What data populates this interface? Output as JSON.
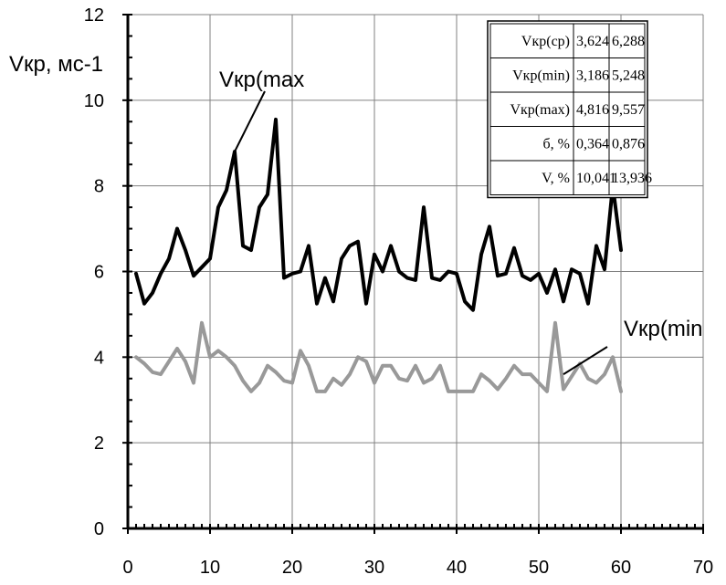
{
  "chart_data": {
    "type": "line",
    "title": "",
    "xlabel": "",
    "ylabel": "Vкр, мс-1",
    "xlim": [
      0,
      70
    ],
    "ylim": [
      0,
      12
    ],
    "xticks": [
      0,
      10,
      20,
      30,
      40,
      50,
      60,
      70
    ],
    "yticks": [
      0,
      2,
      4,
      6,
      8,
      10,
      12
    ],
    "grid": true,
    "legend": "none",
    "series": [
      {
        "name": "Vкр(max",
        "color": "#000000",
        "x": [
          1,
          2,
          3,
          4,
          5,
          6,
          7,
          8,
          9,
          10,
          11,
          12,
          13,
          14,
          15,
          16,
          17,
          18,
          19,
          20,
          21,
          22,
          23,
          24,
          25,
          26,
          27,
          28,
          29,
          30,
          31,
          32,
          33,
          34,
          35,
          36,
          37,
          38,
          39,
          40,
          41,
          42,
          43,
          44,
          45,
          46,
          47,
          48,
          49,
          50,
          51,
          52,
          53,
          54,
          55,
          56,
          57,
          58,
          59,
          60
        ],
        "values": [
          5.95,
          5.25,
          5.5,
          5.95,
          6.3,
          7.0,
          6.5,
          5.9,
          6.1,
          6.3,
          7.5,
          7.9,
          8.8,
          6.6,
          6.5,
          7.5,
          7.8,
          9.55,
          5.85,
          5.95,
          6.0,
          6.6,
          5.25,
          5.85,
          5.3,
          6.3,
          6.6,
          6.7,
          5.25,
          6.4,
          6.0,
          6.6,
          6.0,
          5.85,
          5.8,
          7.5,
          5.85,
          5.8,
          6.0,
          5.95,
          5.3,
          5.1,
          6.4,
          7.05,
          5.9,
          5.95,
          6.55,
          5.9,
          5.8,
          5.95,
          5.5,
          6.05,
          5.3,
          6.05,
          5.95,
          5.25,
          6.6,
          6.05,
          8.0,
          6.5
        ]
      },
      {
        "name": "Vкр(min",
        "color": "#999999",
        "x": [
          1,
          2,
          3,
          4,
          5,
          6,
          7,
          8,
          9,
          10,
          11,
          12,
          13,
          14,
          15,
          16,
          17,
          18,
          19,
          20,
          21,
          22,
          23,
          24,
          25,
          26,
          27,
          28,
          29,
          30,
          31,
          32,
          33,
          34,
          35,
          36,
          37,
          38,
          39,
          40,
          41,
          42,
          43,
          44,
          45,
          46,
          47,
          48,
          49,
          50,
          51,
          52,
          53,
          54,
          55,
          56,
          57,
          58,
          59,
          60
        ],
        "values": [
          4.0,
          3.85,
          3.65,
          3.6,
          3.9,
          4.2,
          3.9,
          3.4,
          4.8,
          4.0,
          4.15,
          4.0,
          3.8,
          3.45,
          3.2,
          3.4,
          3.8,
          3.65,
          3.45,
          3.4,
          4.15,
          3.8,
          3.2,
          3.2,
          3.5,
          3.35,
          3.6,
          4.0,
          3.9,
          3.4,
          3.8,
          3.8,
          3.5,
          3.45,
          3.8,
          3.4,
          3.5,
          3.8,
          3.2,
          3.2,
          3.2,
          3.2,
          3.6,
          3.45,
          3.25,
          3.5,
          3.8,
          3.6,
          3.6,
          3.4,
          3.2,
          4.8,
          3.25,
          3.55,
          3.85,
          3.5,
          3.4,
          3.6,
          4.0,
          3.2
        ]
      }
    ],
    "annotations": [
      {
        "text": "Vкр(max",
        "points_to": {
          "x": 13,
          "y": 8.8
        }
      },
      {
        "text": "Vкр(min",
        "points_to": {
          "x": 53,
          "y": 3.6
        }
      }
    ],
    "table": {
      "rows": [
        [
          "Vкр(ср)",
          "3,624",
          "6,288"
        ],
        [
          "Vкр(min)",
          "3,186",
          "5,248"
        ],
        [
          "Vкр(max)",
          "4,816",
          "9,557"
        ],
        [
          "б, %",
          "0,364",
          "0,876"
        ],
        [
          "V, %",
          "10,041",
          "13,936"
        ]
      ]
    }
  }
}
